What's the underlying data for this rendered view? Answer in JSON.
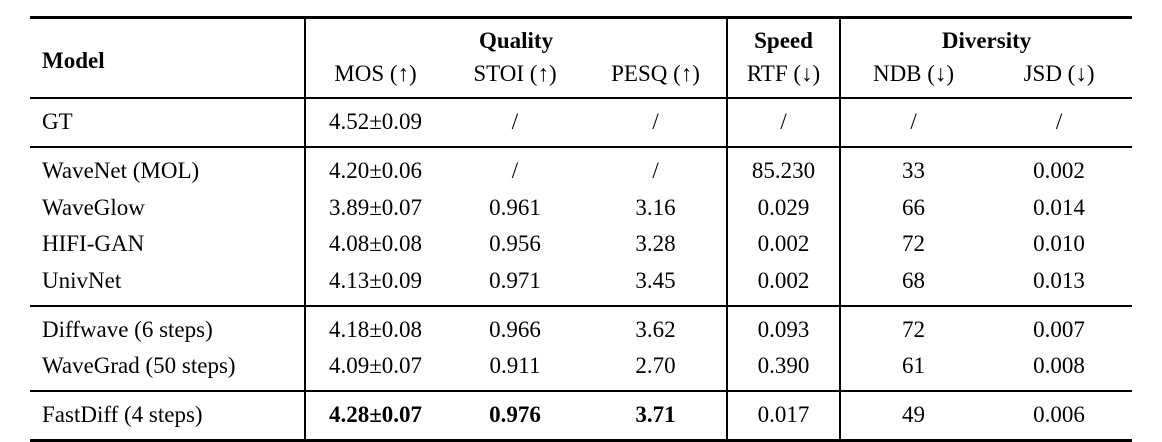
{
  "table": {
    "header": {
      "model": "Model",
      "groups": [
        {
          "label": "Quality"
        },
        {
          "label": "Speed"
        },
        {
          "label": "Diversity"
        }
      ],
      "columns": [
        "MOS (↑)",
        "STOI (↑)",
        "PESQ (↑)",
        "RTF (↓)",
        "NDB (↓)",
        "JSD (↓)"
      ]
    },
    "sections": [
      {
        "rows": [
          {
            "model": "GT",
            "values": [
              "4.52±0.09",
              "/",
              "/",
              "/",
              "/",
              "/"
            ]
          }
        ]
      },
      {
        "rows": [
          {
            "model": "WaveNet (MOL)",
            "values": [
              "4.20±0.06",
              "/",
              "/",
              "85.230",
              "33",
              "0.002"
            ]
          },
          {
            "model": "WaveGlow",
            "values": [
              "3.89±0.07",
              "0.961",
              "3.16",
              "0.029",
              "66",
              "0.014"
            ]
          },
          {
            "model": "HIFI-GAN",
            "values": [
              "4.08±0.08",
              "0.956",
              "3.28",
              "0.002",
              "72",
              "0.010"
            ]
          },
          {
            "model": "UnivNet",
            "values": [
              "4.13±0.09",
              "0.971",
              "3.45",
              "0.002",
              "68",
              "0.013"
            ]
          }
        ]
      },
      {
        "rows": [
          {
            "model": "Diffwave (6 steps)",
            "values": [
              "4.18±0.08",
              "0.966",
              "3.62",
              "0.093",
              "72",
              "0.007"
            ]
          },
          {
            "model": "WaveGrad (50 steps)",
            "values": [
              "4.09±0.07",
              "0.911",
              "2.70",
              "0.390",
              "61",
              "0.008"
            ]
          }
        ]
      },
      {
        "rows": [
          {
            "model": "FastDiff (4 steps)",
            "values": [
              "4.28±0.07",
              "0.976",
              "3.71",
              "0.017",
              "49",
              "0.006"
            ]
          }
        ]
      }
    ]
  }
}
